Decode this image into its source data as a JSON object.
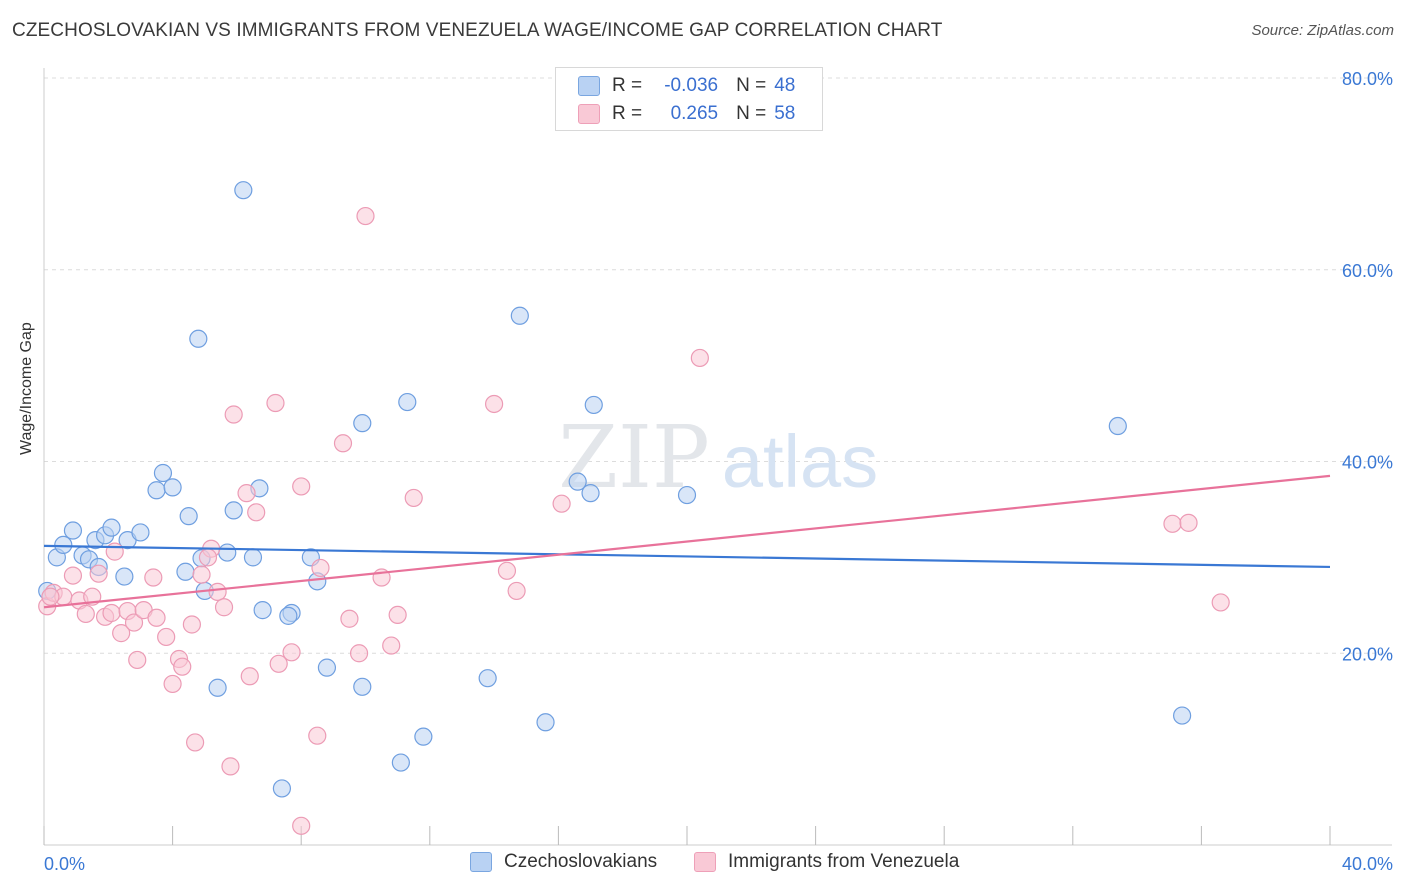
{
  "title": "CZECHOSLOVAKIAN VS IMMIGRANTS FROM VENEZUELA WAGE/INCOME GAP CORRELATION CHART",
  "source": "Source: ZipAtlas.com",
  "watermark": {
    "zip": "ZIP",
    "atlas": "atlas"
  },
  "legend": {
    "rows": [
      {
        "r_label": "R =",
        "r_value": "-0.036",
        "n_label": "N =",
        "n_value": "48"
      },
      {
        "r_label": "R =",
        "r_value": "0.265",
        "n_label": "N =",
        "n_value": "58"
      }
    ]
  },
  "bottom_legend": [
    "Czechoslovakians",
    "Immigrants from Venezuela"
  ],
  "chart_data": {
    "type": "scatter",
    "title": "CZECHOSLOVAKIAN VS IMMIGRANTS FROM VENEZUELA WAGE/INCOME GAP CORRELATION CHART",
    "xlabel": "",
    "ylabel": "Wage/Income Gap",
    "xlim": [
      0,
      40
    ],
    "ylim": [
      0,
      80
    ],
    "x_tick_labels": [
      "0.0%",
      "40.0%"
    ],
    "y_tick_labels": [
      "20.0%",
      "40.0%",
      "60.0%",
      "80.0%"
    ],
    "y_ticks": [
      20,
      40,
      60,
      80
    ],
    "grid": true,
    "colors": {
      "blue": "#3a78d4",
      "pink": "#e8729a",
      "blue_fill": "#b9d2f3",
      "pink_fill": "#f9c9d6"
    },
    "series": [
      {
        "name": "Czechoslovakians",
        "color": "#3a78d4",
        "trend": {
          "x": [
            0,
            40
          ],
          "y": [
            31.2,
            29.0
          ]
        },
        "points": [
          [
            0.1,
            26.5
          ],
          [
            0.4,
            30.0
          ],
          [
            0.6,
            31.3
          ],
          [
            0.9,
            32.8
          ],
          [
            1.2,
            30.2
          ],
          [
            1.4,
            29.8
          ],
          [
            1.6,
            31.8
          ],
          [
            1.9,
            32.3
          ],
          [
            2.1,
            33.1
          ],
          [
            1.7,
            29.0
          ],
          [
            2.6,
            31.8
          ],
          [
            2.5,
            28.0
          ],
          [
            3.0,
            32.6
          ],
          [
            3.7,
            38.8
          ],
          [
            3.5,
            37.0
          ],
          [
            4.0,
            37.3
          ],
          [
            4.5,
            34.3
          ],
          [
            4.4,
            28.5
          ],
          [
            4.9,
            29.9
          ],
          [
            5.0,
            26.5
          ],
          [
            5.7,
            30.5
          ],
          [
            5.9,
            34.9
          ],
          [
            6.5,
            30.0
          ],
          [
            6.7,
            37.2
          ],
          [
            6.8,
            24.5
          ],
          [
            7.7,
            24.2
          ],
          [
            7.6,
            23.9
          ],
          [
            8.3,
            30.0
          ],
          [
            8.5,
            27.5
          ],
          [
            8.8,
            18.5
          ],
          [
            4.8,
            52.8
          ],
          [
            6.2,
            68.3
          ],
          [
            7.4,
            5.9
          ],
          [
            9.9,
            16.5
          ],
          [
            9.9,
            44.0
          ],
          [
            11.3,
            46.2
          ],
          [
            11.1,
            8.6
          ],
          [
            11.8,
            11.3
          ],
          [
            13.8,
            17.4
          ],
          [
            14.8,
            55.2
          ],
          [
            15.6,
            12.8
          ],
          [
            16.6,
            37.9
          ],
          [
            17.0,
            36.7
          ],
          [
            17.1,
            45.9
          ],
          [
            20.0,
            36.5
          ],
          [
            33.4,
            43.7
          ],
          [
            35.4,
            13.5
          ],
          [
            5.4,
            16.4
          ]
        ]
      },
      {
        "name": "Immigrants from Venezuela",
        "color": "#e8729a",
        "trend": {
          "x": [
            0,
            40
          ],
          "y": [
            24.8,
            38.5
          ]
        },
        "points": [
          [
            0.1,
            24.9
          ],
          [
            0.3,
            26.3
          ],
          [
            0.6,
            25.9
          ],
          [
            0.9,
            28.1
          ],
          [
            1.1,
            25.5
          ],
          [
            1.3,
            24.1
          ],
          [
            1.5,
            25.9
          ],
          [
            1.7,
            28.3
          ],
          [
            1.9,
            23.8
          ],
          [
            2.1,
            24.2
          ],
          [
            2.2,
            30.6
          ],
          [
            2.4,
            22.1
          ],
          [
            2.6,
            24.4
          ],
          [
            2.8,
            23.2
          ],
          [
            2.9,
            19.3
          ],
          [
            3.1,
            24.5
          ],
          [
            3.4,
            27.9
          ],
          [
            3.5,
            23.7
          ],
          [
            3.8,
            21.7
          ],
          [
            4.0,
            16.8
          ],
          [
            4.2,
            19.4
          ],
          [
            4.3,
            18.6
          ],
          [
            4.6,
            23.0
          ],
          [
            4.7,
            10.7
          ],
          [
            4.9,
            28.2
          ],
          [
            5.2,
            30.9
          ],
          [
            5.1,
            30.0
          ],
          [
            5.4,
            26.4
          ],
          [
            5.6,
            24.8
          ],
          [
            5.8,
            8.2
          ],
          [
            5.9,
            44.9
          ],
          [
            6.3,
            36.7
          ],
          [
            6.4,
            17.6
          ],
          [
            6.6,
            34.7
          ],
          [
            7.2,
            46.1
          ],
          [
            7.3,
            18.9
          ],
          [
            7.7,
            20.1
          ],
          [
            8.0,
            37.4
          ],
          [
            8.0,
            2.0
          ],
          [
            8.5,
            11.4
          ],
          [
            8.6,
            28.9
          ],
          [
            9.3,
            41.9
          ],
          [
            9.5,
            23.6
          ],
          [
            9.8,
            20.0
          ],
          [
            10.0,
            65.6
          ],
          [
            10.5,
            27.9
          ],
          [
            10.8,
            20.8
          ],
          [
            11.0,
            24.0
          ],
          [
            11.5,
            36.2
          ],
          [
            14.0,
            46.0
          ],
          [
            14.4,
            28.6
          ],
          [
            14.7,
            26.5
          ],
          [
            16.1,
            35.6
          ],
          [
            20.4,
            50.8
          ],
          [
            35.1,
            33.5
          ],
          [
            35.6,
            33.6
          ],
          [
            36.6,
            25.3
          ],
          [
            0.2,
            25.9
          ]
        ]
      }
    ]
  }
}
